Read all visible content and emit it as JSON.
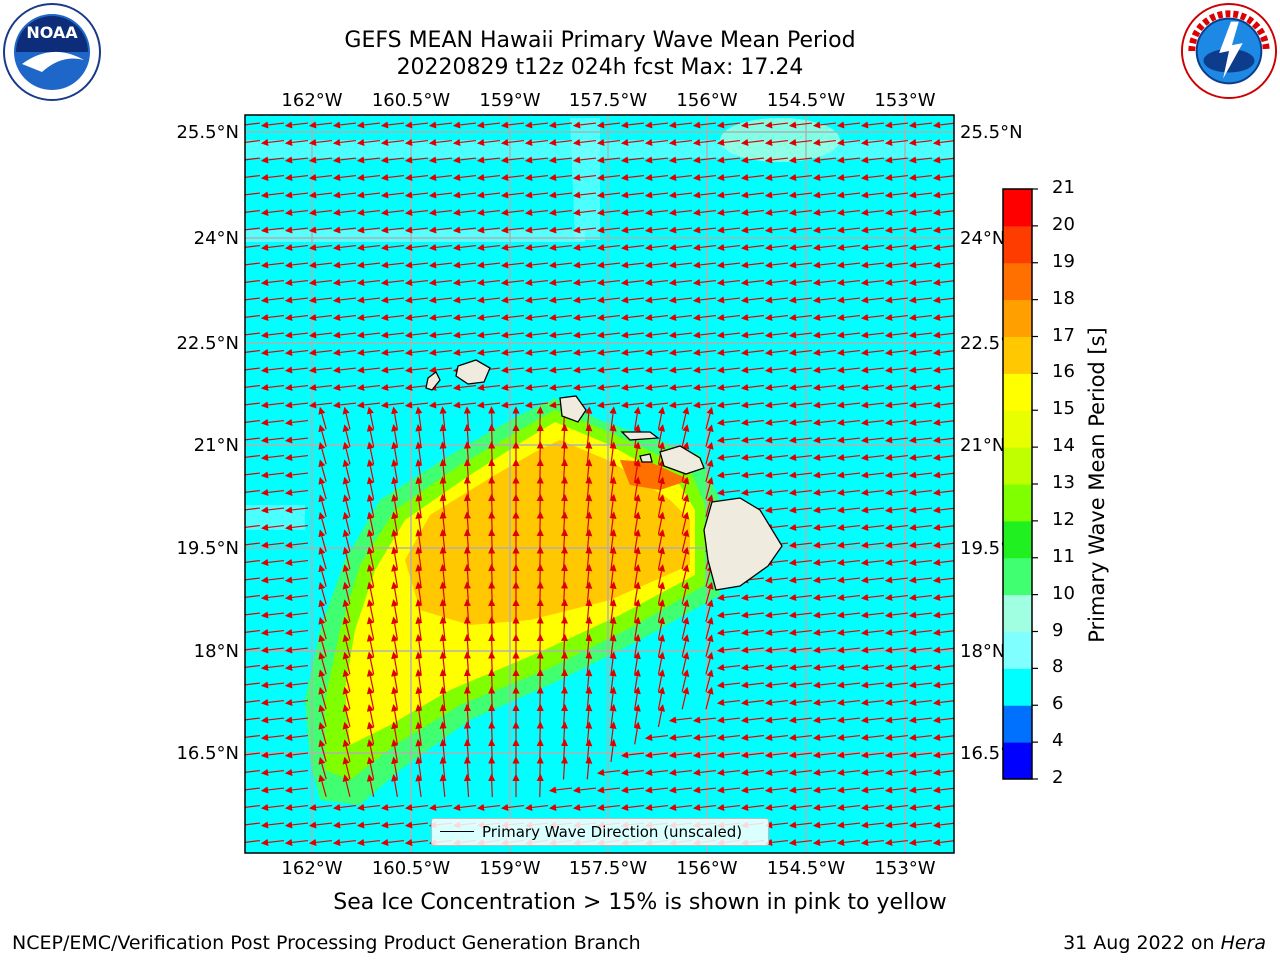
{
  "title_line1": "GEFS MEAN Hawaii Primary Wave Mean Period",
  "title_line2": "20220829 t12z 024h fcst   Max: 17.24",
  "lon_ticks": [
    "162°W",
    "160.5°W",
    "159°W",
    "157.5°W",
    "156°W",
    "154.5°W",
    "153°W"
  ],
  "lat_ticks": [
    "25.5°N",
    "24°N",
    "22.5°N",
    "21°N",
    "19.5°N",
    "18°N",
    "16.5°N"
  ],
  "colorbar": {
    "title": "Primary Wave Mean Period [s]",
    "levels": [
      "2",
      "4",
      "6",
      "8",
      "9",
      "10",
      "11",
      "12",
      "13",
      "14",
      "15",
      "16",
      "17",
      "18",
      "19",
      "20",
      "21"
    ],
    "colors": [
      "#0000ff",
      "#0070ff",
      "#00ffff",
      "#7fffff",
      "#a0ffe0",
      "#40ff70",
      "#20f020",
      "#80ff00",
      "#c0ff00",
      "#e8ff00",
      "#ffff00",
      "#ffc800",
      "#ffa000",
      "#ff7000",
      "#ff3c00",
      "#ff0000"
    ]
  },
  "legend": {
    "label": "Primary Wave Direction (unscaled)"
  },
  "ice_note": "Sea Ice Concentration > 15% is shown in pink to yellow",
  "footer_left": "NCEP/EMC/Verification Post Processing Product Generation Branch",
  "footer_date": "31 Aug 2022 on ",
  "footer_machine": "Hera",
  "logos": {
    "left": "noaa-logo",
    "right": "nws-logo"
  }
}
